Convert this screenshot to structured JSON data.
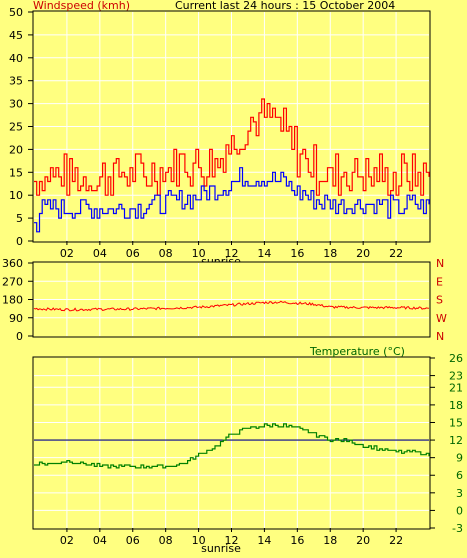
{
  "header": {
    "wind_title": "Windspeed (kmh)",
    "period_title": "Current last 24 hours : 15 October 2004"
  },
  "colors": {
    "background": "#ffff80",
    "grid": "#ffffff",
    "wind_gust": "#ff0000",
    "wind_avg": "#0000ff",
    "direction": "#ff0000",
    "temperature": "#008000",
    "temp_reference": "#000080",
    "title_red": "#cc0000",
    "title_green": "#006600"
  },
  "chart_data": [
    {
      "type": "line",
      "name": "windspeed",
      "title": "Windspeed (kmh)",
      "ylim": [
        0,
        50
      ],
      "yticks": [
        0,
        5,
        10,
        15,
        20,
        25,
        30,
        35,
        40,
        45,
        50
      ],
      "xlim": [
        0,
        24
      ],
      "xtick_labels": [
        "02",
        "04",
        "06",
        "08",
        "10",
        "12",
        "14",
        "16",
        "18",
        "20",
        "22"
      ],
      "xlabel_note": "sunrise",
      "grid": true,
      "series": [
        {
          "color": "#ff0000",
          "x": [
            0,
            1,
            2,
            3,
            4,
            5,
            6,
            7,
            8,
            9,
            10,
            11,
            12,
            13,
            14,
            15,
            16,
            17,
            18,
            19,
            20,
            21,
            22,
            23,
            24
          ],
          "values": [
            13,
            14,
            14,
            13,
            13,
            14,
            14,
            14,
            15,
            16,
            16,
            17,
            21,
            25,
            27,
            24,
            19,
            15,
            14,
            14,
            14,
            14,
            13,
            14,
            14
          ]
        },
        {
          "color": "#0000ff",
          "x": [
            0,
            1,
            2,
            3,
            4,
            5,
            6,
            7,
            8,
            9,
            10,
            11,
            12,
            13,
            14,
            15,
            16,
            17,
            18,
            19,
            20,
            21,
            22,
            23,
            24
          ],
          "values": [
            6,
            7,
            7,
            7,
            7,
            7,
            7,
            8,
            8,
            9,
            10,
            11,
            13,
            14,
            14,
            13,
            11,
            9,
            8,
            8,
            8,
            8,
            7,
            8,
            8
          ]
        }
      ]
    },
    {
      "type": "line",
      "name": "wind-direction",
      "ylim": [
        0,
        360
      ],
      "yticks": [
        0,
        90,
        180,
        270,
        360
      ],
      "right_labels": [
        "N",
        "W",
        "S",
        "E",
        "N"
      ],
      "xlim": [
        0,
        24
      ],
      "grid": true,
      "series": [
        {
          "color": "#ff0000",
          "x": [
            0,
            2,
            4,
            6,
            8,
            10,
            12,
            14,
            15,
            16,
            17,
            18,
            20,
            22,
            24
          ],
          "values": [
            135,
            130,
            132,
            133,
            137,
            142,
            153,
            165,
            167,
            162,
            157,
            143,
            140,
            140,
            137
          ]
        }
      ]
    },
    {
      "type": "line",
      "name": "temperature",
      "title": "Temperature (°C)",
      "ylim": [
        -3,
        26
      ],
      "yticks": [
        -3,
        0,
        3,
        6,
        9,
        12,
        15,
        18,
        21,
        23,
        26
      ],
      "xlim": [
        0,
        24
      ],
      "xtick_labels": [
        "02",
        "04",
        "06",
        "08",
        "10",
        "12",
        "14",
        "16",
        "18",
        "20",
        "22"
      ],
      "xlabel_note": "sunrise",
      "reference_line": 12,
      "grid": true,
      "series": [
        {
          "color": "#008000",
          "x": [
            0,
            1,
            2,
            3,
            4,
            5,
            6,
            7,
            8,
            9,
            10,
            11,
            12,
            13,
            14,
            15,
            16,
            17,
            18,
            19,
            20,
            21,
            22,
            23,
            24
          ],
          "values": [
            8,
            8,
            8.5,
            8,
            7.5,
            7.5,
            7.5,
            7.5,
            7.5,
            8,
            9.5,
            11,
            13,
            14,
            14.5,
            14.5,
            14,
            13,
            12,
            12,
            11,
            10.5,
            10,
            10,
            9.5
          ]
        }
      ]
    }
  ]
}
